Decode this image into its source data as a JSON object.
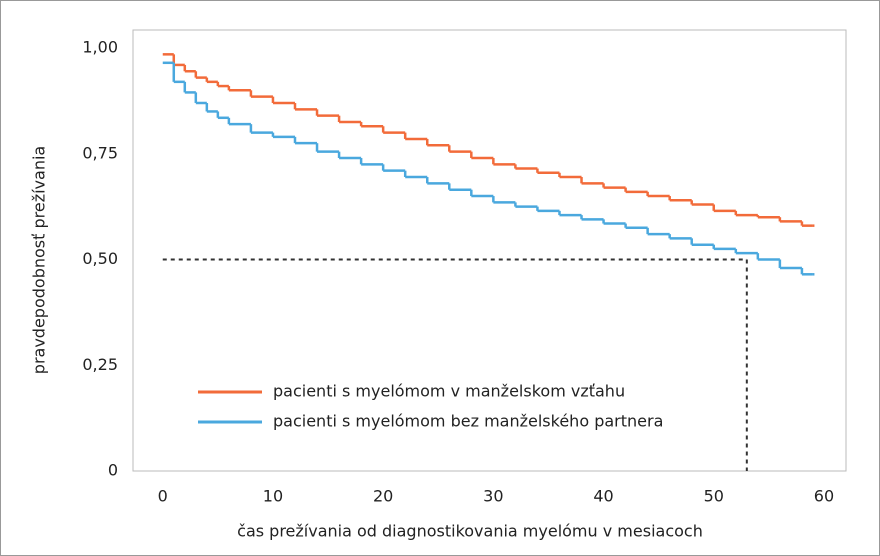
{
  "chart_data": {
    "type": "step",
    "xlabel": "čas prežívania od diagnostikovania myelómu v mesiacoch",
    "ylabel": "pravdepodobnosť prežívania",
    "x": [
      0,
      1,
      2,
      3,
      4,
      5,
      6,
      8,
      10,
      12,
      14,
      16,
      18,
      20,
      22,
      24,
      26,
      28,
      30,
      32,
      34,
      36,
      38,
      40,
      42,
      44,
      46,
      48,
      50,
      52,
      54,
      56,
      58,
      59
    ],
    "series": [
      {
        "name": "pacienti s myelómom v manželskom vzťahu",
        "color": "#f26b3a",
        "values": [
          0.985,
          0.96,
          0.945,
          0.93,
          0.92,
          0.91,
          0.9,
          0.885,
          0.87,
          0.855,
          0.84,
          0.825,
          0.815,
          0.8,
          0.785,
          0.77,
          0.755,
          0.74,
          0.725,
          0.715,
          0.705,
          0.695,
          0.68,
          0.67,
          0.66,
          0.65,
          0.64,
          0.63,
          0.615,
          0.605,
          0.6,
          0.59,
          0.58,
          0.58
        ]
      },
      {
        "name": "pacienti s myelómom bez manželského partnera",
        "color": "#4aa8de",
        "values": [
          0.965,
          0.92,
          0.895,
          0.87,
          0.85,
          0.835,
          0.82,
          0.8,
          0.79,
          0.775,
          0.755,
          0.74,
          0.725,
          0.71,
          0.695,
          0.68,
          0.665,
          0.65,
          0.635,
          0.625,
          0.615,
          0.605,
          0.595,
          0.585,
          0.575,
          0.56,
          0.55,
          0.535,
          0.525,
          0.515,
          0.5,
          0.48,
          0.465,
          0.465
        ]
      }
    ],
    "reference": {
      "x": 53,
      "y": 0.5
    },
    "xlim": [
      -2.7,
      62
    ],
    "ylim": [
      0,
      1
    ],
    "xticks": [
      0,
      10,
      20,
      30,
      40,
      50,
      60
    ],
    "yticks": [
      {
        "value": 0,
        "label": "0"
      },
      {
        "value": 0.25,
        "label": "0,25"
      },
      {
        "value": 0.5,
        "label": "0,50"
      },
      {
        "value": 0.75,
        "label": "0,75"
      },
      {
        "value": 1,
        "label": "1,00"
      }
    ]
  }
}
